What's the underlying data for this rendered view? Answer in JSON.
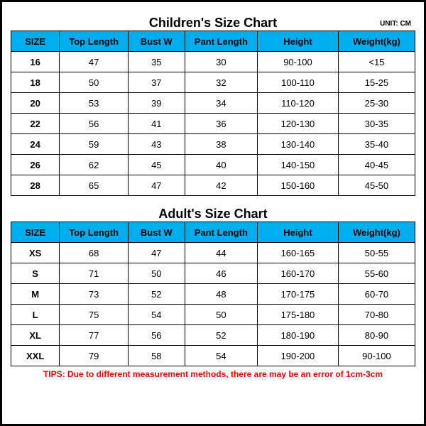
{
  "unit_label": "UNIT: CM",
  "colors": {
    "header_bg": "#00aeef",
    "border": "#000000",
    "tips": "#ff0000",
    "background": "#ffffff"
  },
  "children": {
    "title": "Children's Size Chart",
    "columns": [
      "SIZE",
      "Top Length",
      "Bust W",
      "Pant Length",
      "Height",
      "Weight(kg)"
    ],
    "rows": [
      [
        "16",
        "47",
        "35",
        "30",
        "90-100",
        "<15"
      ],
      [
        "18",
        "50",
        "37",
        "32",
        "100-110",
        "15-25"
      ],
      [
        "20",
        "53",
        "39",
        "34",
        "110-120",
        "25-30"
      ],
      [
        "22",
        "56",
        "41",
        "36",
        "120-130",
        "30-35"
      ],
      [
        "24",
        "59",
        "43",
        "38",
        "130-140",
        "35-40"
      ],
      [
        "26",
        "62",
        "45",
        "40",
        "140-150",
        "40-45"
      ],
      [
        "28",
        "65",
        "47",
        "42",
        "150-160",
        "45-50"
      ]
    ]
  },
  "adult": {
    "title": "Adult's Size Chart",
    "columns": [
      "SIZE",
      "Top Length",
      "Bust W",
      "Pant Length",
      "Height",
      "Weight(kg)"
    ],
    "rows": [
      [
        "XS",
        "68",
        "47",
        "44",
        "160-165",
        "50-55"
      ],
      [
        "S",
        "71",
        "50",
        "46",
        "160-170",
        "55-60"
      ],
      [
        "M",
        "73",
        "52",
        "48",
        "170-175",
        "60-70"
      ],
      [
        "L",
        "75",
        "54",
        "50",
        "175-180",
        "70-80"
      ],
      [
        "XL",
        "77",
        "56",
        "52",
        "180-190",
        "80-90"
      ],
      [
        "XXL",
        "79",
        "58",
        "54",
        "190-200",
        "90-100"
      ]
    ]
  },
  "tips": "TIPS: Due to different measurement methods, there are may be an error of 1cm-3cm"
}
